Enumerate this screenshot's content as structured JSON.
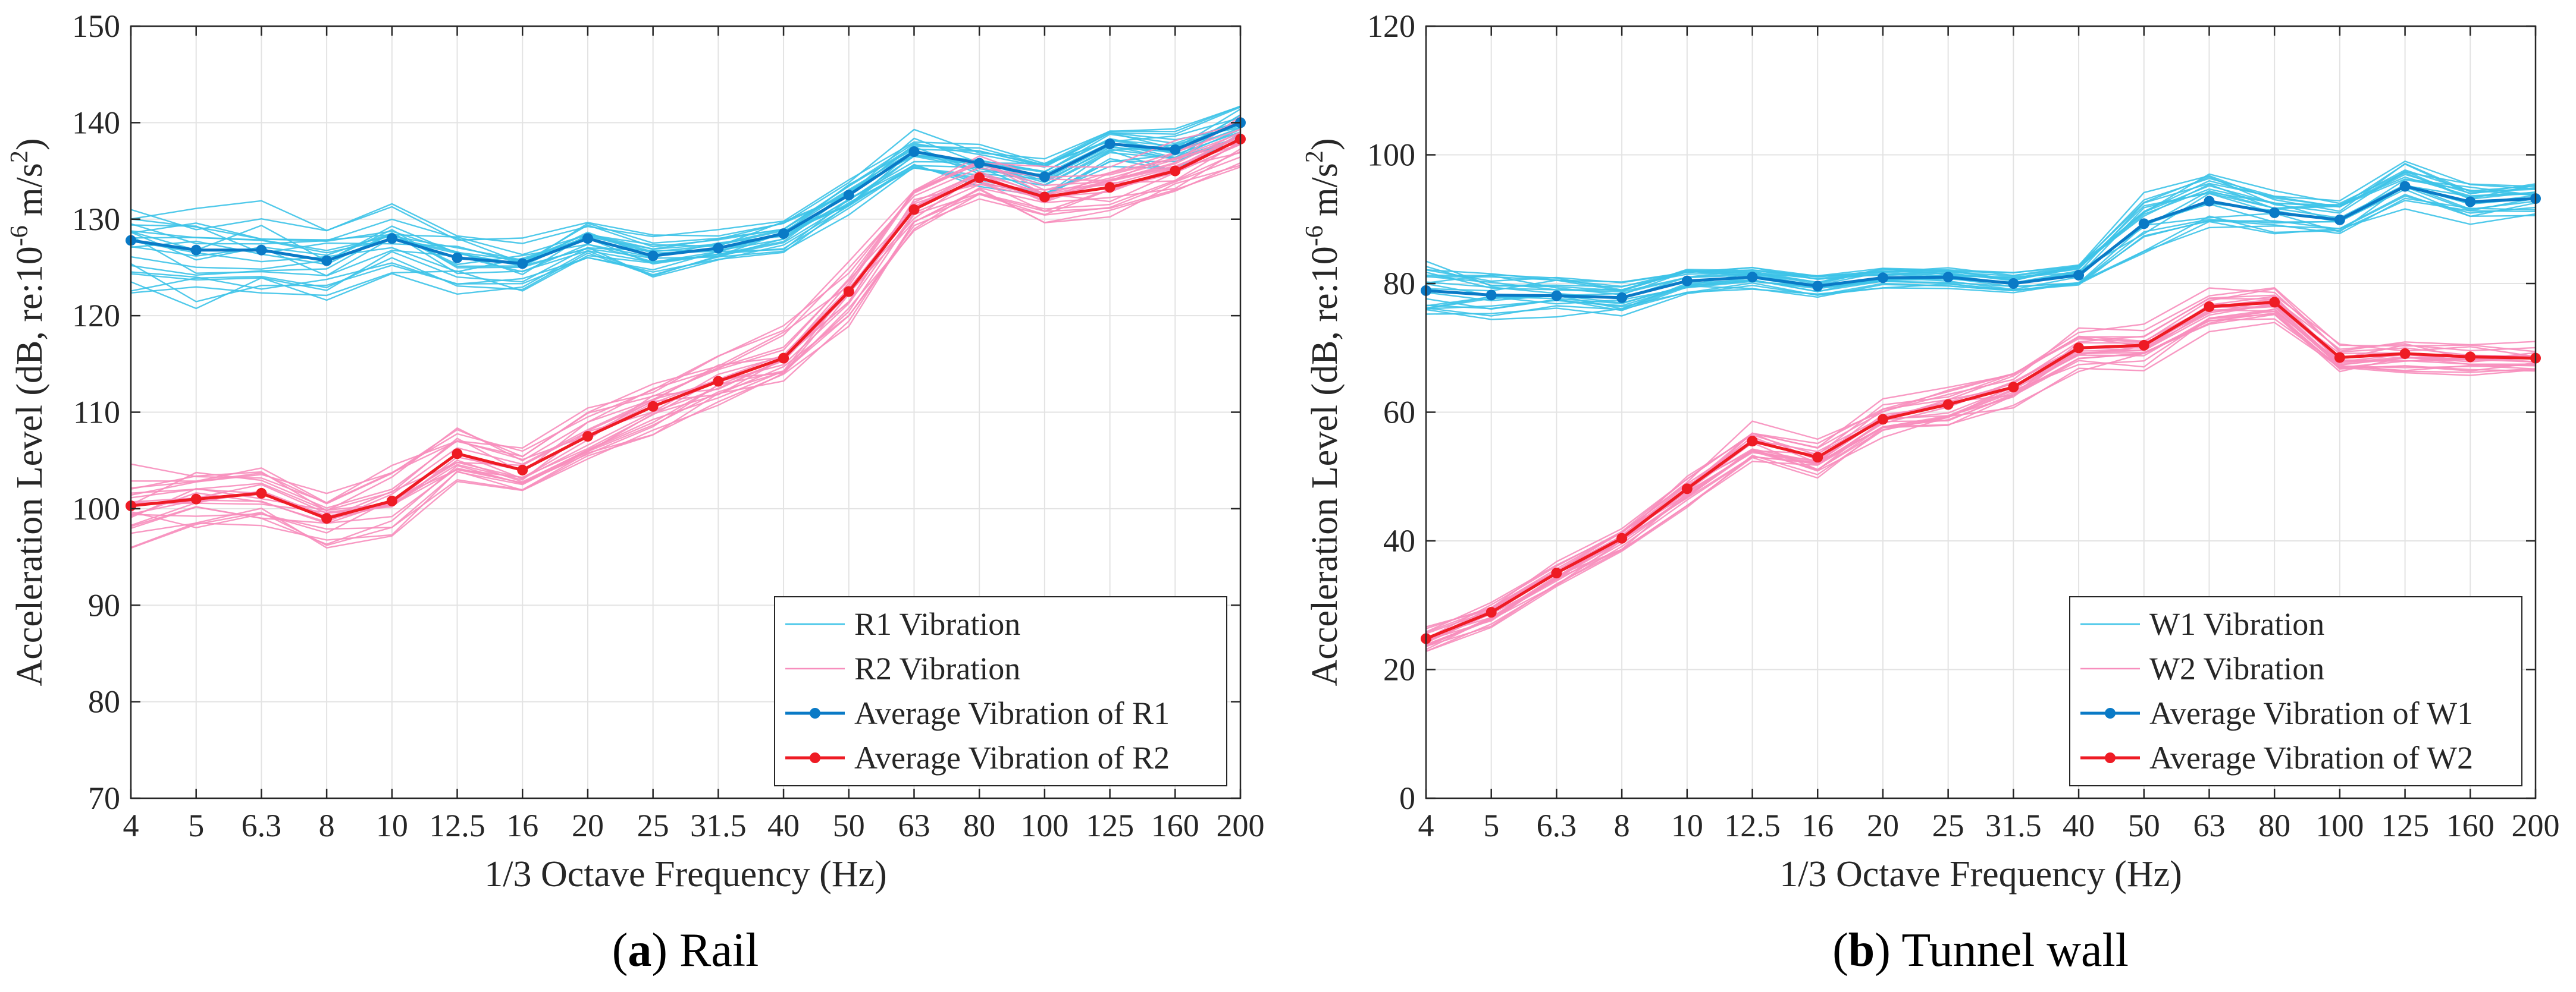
{
  "chart_data": [
    {
      "type": "line",
      "caption": {
        "letter": "a",
        "text": "Rail"
      },
      "categories": [
        "4",
        "5",
        "6.3",
        "8",
        "10",
        "12.5",
        "16",
        "20",
        "25",
        "31.5",
        "40",
        "50",
        "63",
        "80",
        "100",
        "125",
        "160",
        "200"
      ],
      "xlabel": "1/3 Octave Frequency (Hz)",
      "ylabel": {
        "main": "Acceleration Level (dB, re:10",
        "exp": "-6",
        "unit": " m/s",
        "unit_exp": "2",
        "close": ")"
      },
      "ylim": [
        70,
        150
      ],
      "yticks": [
        70,
        80,
        90,
        100,
        110,
        120,
        130,
        140,
        150
      ],
      "grid": true,
      "legend_position": "bottom-right",
      "legend": [
        "R1 Vibration",
        "R2 Vibration",
        "Average Vibration of R1",
        "Average Vibration of R2"
      ],
      "series": [
        {
          "name": "Average Vibration of R1",
          "values": [
            127.8,
            126.8,
            126.8,
            125.7,
            128.0,
            126.0,
            125.4,
            128.0,
            126.2,
            127.0,
            128.5,
            132.5,
            137.0,
            135.8,
            134.4,
            137.8,
            137.2,
            140.0
          ]
        },
        {
          "name": "Average Vibration of R2",
          "values": [
            100.3,
            101.0,
            101.6,
            99.0,
            100.8,
            105.7,
            104.0,
            107.5,
            110.6,
            113.2,
            115.6,
            122.5,
            131.0,
            134.3,
            132.3,
            133.3,
            135.0,
            138.3
          ]
        }
      ],
      "band_series": [
        {
          "name": "R1 Vibration",
          "count": 22,
          "spread": [
            10.2,
            9.8,
            8.8,
            6.6,
            6.8,
            6.2,
            5.2,
            4.8,
            4.0,
            3.6,
            3.6,
            4.4,
            4.4,
            4.4,
            4.2,
            4.4,
            4.4,
            4.4
          ]
        },
        {
          "name": "R2 Vibration",
          "count": 22,
          "spread": [
            7.8,
            7.2,
            6.8,
            5.8,
            6.4,
            5.6,
            4.8,
            5.2,
            5.6,
            5.6,
            6.6,
            6.4,
            5.4,
            5.0,
            5.4,
            5.4,
            5.4,
            5.0
          ]
        }
      ],
      "colors": {
        "r1_band": "#3dc3e8",
        "r2_band": "#f78ebd",
        "r1_avg": "#0a7ac6",
        "r2_avg": "#ee1b24",
        "grid": "#e3e3e3",
        "axis": "#262626"
      }
    },
    {
      "type": "line",
      "caption": {
        "letter": "b",
        "text": "Tunnel wall"
      },
      "categories": [
        "4",
        "5",
        "6.3",
        "8",
        "10",
        "12.5",
        "16",
        "20",
        "25",
        "31.5",
        "40",
        "50",
        "63",
        "80",
        "100",
        "125",
        "160",
        "200"
      ],
      "xlabel": "1/3 Octave Frequency (Hz)",
      "ylabel": {
        "main": "Acceleration Level (dB, re:10",
        "exp": "-6",
        "unit": " m/s",
        "unit_exp": "2",
        "close": ")"
      },
      "ylim": [
        0,
        120
      ],
      "yticks": [
        0,
        20,
        40,
        60,
        80,
        100,
        120
      ],
      "grid": true,
      "legend_position": "bottom-right",
      "legend": [
        "W1 Vibration",
        "W2 Vibration",
        "Average Vibration of W1",
        "Average Vibration of W2"
      ],
      "series": [
        {
          "name": "Average Vibration of W1",
          "values": [
            78.9,
            78.2,
            78.1,
            77.8,
            80.4,
            81.0,
            79.6,
            80.9,
            81.0,
            80.0,
            81.3,
            89.3,
            92.8,
            91.0,
            89.9,
            95.1,
            92.7,
            93.2
          ]
        },
        {
          "name": "Average Vibration of W2",
          "values": [
            24.8,
            28.9,
            35.0,
            40.4,
            48.1,
            55.5,
            53.0,
            58.9,
            61.2,
            63.9,
            70.0,
            70.4,
            76.4,
            77.1,
            68.5,
            69.1,
            68.6,
            68.4
          ]
        }
      ],
      "band_series": [
        {
          "name": "W1 Vibration",
          "count": 22,
          "spread": [
            9.4,
            7.2,
            6.2,
            5.2,
            4.4,
            3.4,
            3.4,
            3.4,
            3.2,
            3.4,
            3.6,
            9.4,
            8.6,
            6.6,
            5.4,
            7.6,
            5.6,
            5.0
          ]
        },
        {
          "name": "W2 Vibration",
          "count": 22,
          "spread": [
            4.4,
            4.0,
            4.4,
            4.4,
            5.4,
            6.2,
            6.8,
            6.2,
            6.2,
            6.2,
            6.6,
            6.6,
            6.6,
            5.0,
            5.2,
            5.6,
            5.4,
            5.0
          ]
        }
      ],
      "colors": {
        "r1_band": "#3dc3e8",
        "r2_band": "#f78ebd",
        "r1_avg": "#0a7ac6",
        "r2_avg": "#ee1b24",
        "grid": "#e3e3e3",
        "axis": "#262626"
      }
    }
  ]
}
